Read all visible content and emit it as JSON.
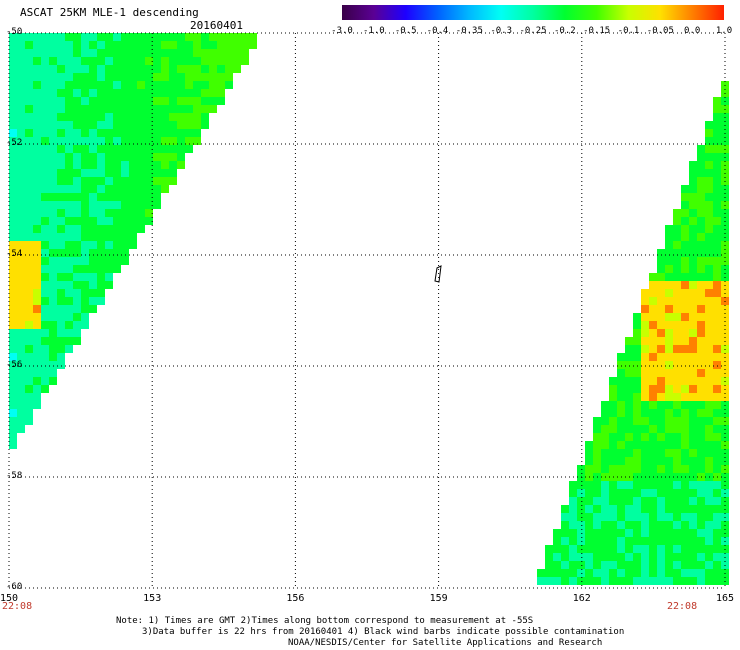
{
  "header": {
    "title": "ASCAT 25KM MLE-1 descending",
    "date": "20160401"
  },
  "colorbar": {
    "labels": [
      "-3.0",
      "-1.0",
      "-0.5",
      "-0.4",
      "-0.35",
      "-0.3",
      "-0.25",
      "-0.2",
      "-0.15",
      "-0.1",
      "-0.05",
      "0.0",
      "1.0"
    ],
    "colors": [
      "#3a0048",
      "#5a0094",
      "#1e00ff",
      "#0060ff",
      "#00b8ff",
      "#00fff4",
      "#00ffa0",
      "#00ff30",
      "#40ff00",
      "#c8ff00",
      "#ffe000",
      "#ff8000",
      "#ff2000"
    ]
  },
  "map": {
    "lat_range": [
      -60,
      -50
    ],
    "lon_range": [
      150,
      165
    ],
    "lat_ticks": [
      "-50",
      "-52",
      "-54",
      "-56",
      "-58",
      "-60"
    ],
    "lon_ticks": [
      "150",
      "153",
      "156",
      "159",
      "162",
      "165"
    ],
    "time_labels": {
      "left": "22:08",
      "right": "22:08"
    },
    "grid": true,
    "swaths": [
      {
        "name": "west",
        "corners": [
          [
            150,
            -50
          ],
          [
            155.3,
            -50
          ],
          [
            150,
            -57.6
          ]
        ]
      },
      {
        "name": "east",
        "corners": [
          [
            165,
            -50.8
          ],
          [
            165,
            -60
          ],
          [
            161,
            -60
          ]
        ]
      }
    ],
    "legend_values": [
      -3.0,
      -1.0,
      -0.5,
      -0.4,
      -0.35,
      -0.3,
      -0.25,
      -0.2,
      -0.15,
      -0.1,
      -0.05,
      0.0,
      1.0
    ]
  },
  "notes": {
    "line1": "Note: 1) Times are GMT 2)Times along bottom correspond to measurement at -55S",
    "line2": "3)Data buffer is 22 hrs from 20160401 4) Black wind barbs indicate possible contamination",
    "line3": "NOAA/NESDIS/Center for Satellite Applications and Research"
  }
}
